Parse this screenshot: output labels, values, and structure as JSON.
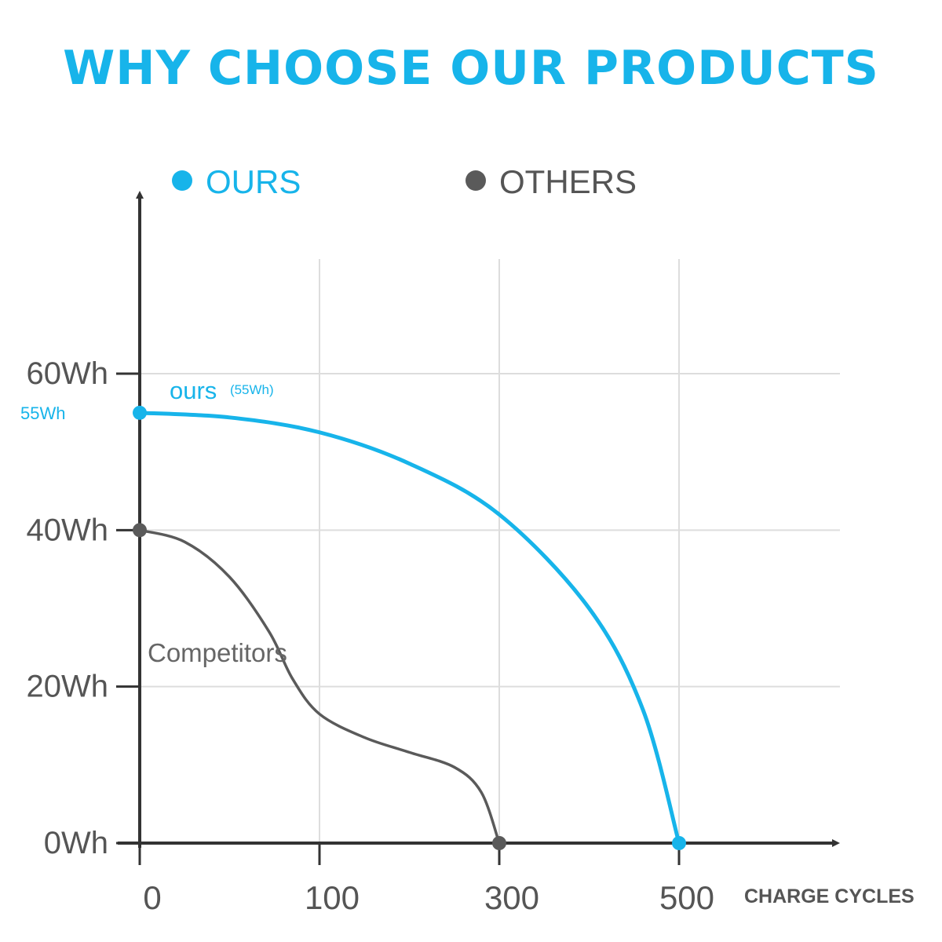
{
  "title": "WHY CHOOSE OUR PRODUCTS",
  "colors": {
    "ours": "#17b4ea",
    "others": "#5a5a5a",
    "grid": "#dddddd",
    "axis": "#333333"
  },
  "chart_data": {
    "type": "line",
    "title": "WHY CHOOSE OUR PRODUCTS",
    "xlabel": "CHARGE CYCLES",
    "ylabel": "",
    "legend": {
      "placement": "top",
      "entries": [
        "OURS",
        "OTHERS"
      ]
    },
    "grid": true,
    "x_ticks": [
      {
        "label": "0",
        "position": 0
      },
      {
        "label": "100",
        "position": 1
      },
      {
        "label": "300",
        "position": 2
      },
      {
        "label": "500",
        "position": 3,
        "highlight": true
      }
    ],
    "y_ticks": [
      {
        "label": "0Wh",
        "value": 0
      },
      {
        "label": "20Wh",
        "value": 20
      },
      {
        "label": "40Wh",
        "value": 40
      },
      {
        "label": "60Wh",
        "value": 60
      }
    ],
    "y_marker": {
      "label": "55Wh",
      "value": 55
    },
    "ylim": [
      0,
      60
    ],
    "series": [
      {
        "name": "OURS",
        "annotation": "ours",
        "annotation_small": "(55Wh)",
        "points": [
          {
            "x": 0,
            "y": 55
          },
          {
            "x": 0.5,
            "y": 54.4
          },
          {
            "x": 1,
            "y": 52.5
          },
          {
            "x": 1.5,
            "y": 48.5
          },
          {
            "x": 2,
            "y": 42
          },
          {
            "x": 2.5,
            "y": 30
          },
          {
            "x": 2.8,
            "y": 17
          },
          {
            "x": 3,
            "y": 0
          }
        ]
      },
      {
        "name": "OTHERS",
        "annotation": "Competitors",
        "points": [
          {
            "x": 0,
            "y": 40
          },
          {
            "x": 0.25,
            "y": 38.5
          },
          {
            "x": 0.5,
            "y": 34
          },
          {
            "x": 0.72,
            "y": 27
          },
          {
            "x": 0.85,
            "y": 21
          },
          {
            "x": 1,
            "y": 16.5
          },
          {
            "x": 1.25,
            "y": 13.5
          },
          {
            "x": 1.5,
            "y": 11.6
          },
          {
            "x": 1.75,
            "y": 9.7
          },
          {
            "x": 1.9,
            "y": 6.5
          },
          {
            "x": 2,
            "y": 0
          }
        ]
      }
    ]
  }
}
